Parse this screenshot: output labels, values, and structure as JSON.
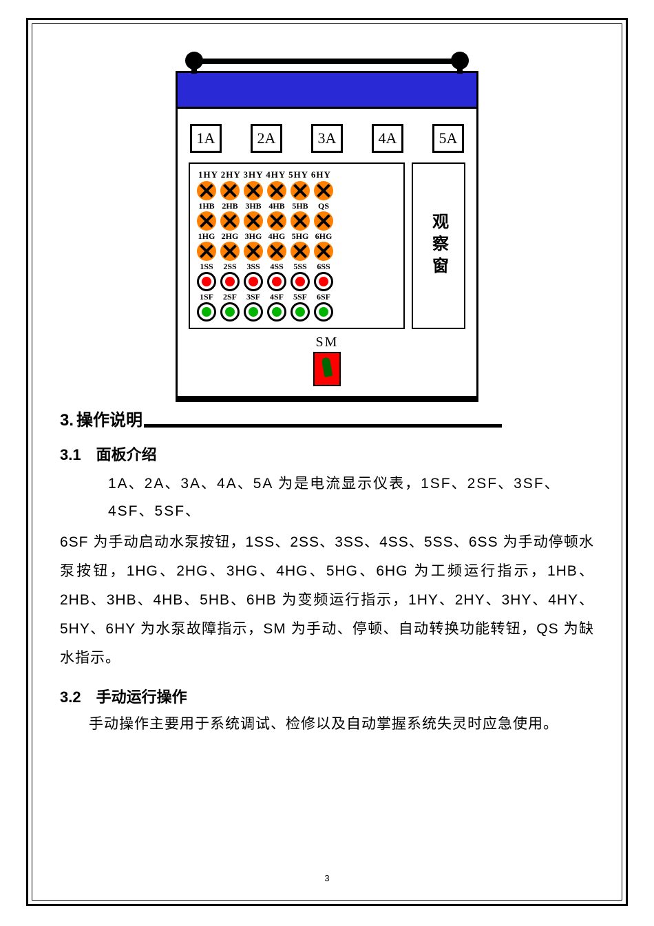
{
  "panel": {
    "meters": [
      "1A",
      "2A",
      "3A",
      "4A",
      "5A"
    ],
    "row_hy": {
      "heading": "1HY 2HY 3HY 4HY 5HY 6HY",
      "lamp_color": "#ff7f00"
    },
    "row_hb": {
      "labels": [
        "1HB",
        "2HB",
        "3HB",
        "4HB",
        "5HB",
        "QS"
      ],
      "lamp_color": "#ff7f00"
    },
    "row_hg": {
      "labels": [
        "1HG",
        "2HG",
        "3HG",
        "4HG",
        "5HG",
        "6HG"
      ],
      "lamp_color": "#ff7f00"
    },
    "row_ss": {
      "labels": [
        "1SS",
        "2SS",
        "3SS",
        "4SS",
        "5SS",
        "6SS"
      ],
      "lamp_color": "#ff7f00"
    },
    "row_sf": {
      "labels": [
        "1SF",
        "2SF",
        "3SF",
        "4SF",
        "5SF",
        "6SF"
      ],
      "lamp_style": "red"
    },
    "row_green": {
      "count": 6,
      "lamp_style": "green"
    },
    "window_label": "观察窗",
    "sm_label": "SM",
    "colors": {
      "blue_band": "#2929d6",
      "orange": "#ff7f00",
      "red": "#ff0000",
      "green": "#00b400"
    }
  },
  "section3": {
    "number": "3.",
    "title": "操作说明"
  },
  "section3_1": {
    "heading_num": "3.1",
    "heading_txt": "面板介绍",
    "line1": "1A、2A、3A、4A、5A 为是电流显示仪表，1SF、2SF、3SF、4SF、5SF、",
    "body": "6SF 为手动启动水泵按钮，1SS、2SS、3SS、4SS、5SS、6SS 为手动停顿水泵按钮，1HG、2HG、3HG、4HG、5HG、6HG 为工频运行指示，1HB、2HB、3HB、4HB、5HB、6HB 为变频运行指示，1HY、2HY、3HY、4HY、5HY、6HY 为水泵故障指示，SM 为手动、停顿、自动转换功能转钮，QS 为缺水指示。"
  },
  "section3_2": {
    "heading_num": "3.2",
    "heading_txt": "手动运行操作",
    "body": "手动操作主要用于系统调试、检修以及自动掌握系统失灵时应急使用。"
  },
  "page_number": "3"
}
